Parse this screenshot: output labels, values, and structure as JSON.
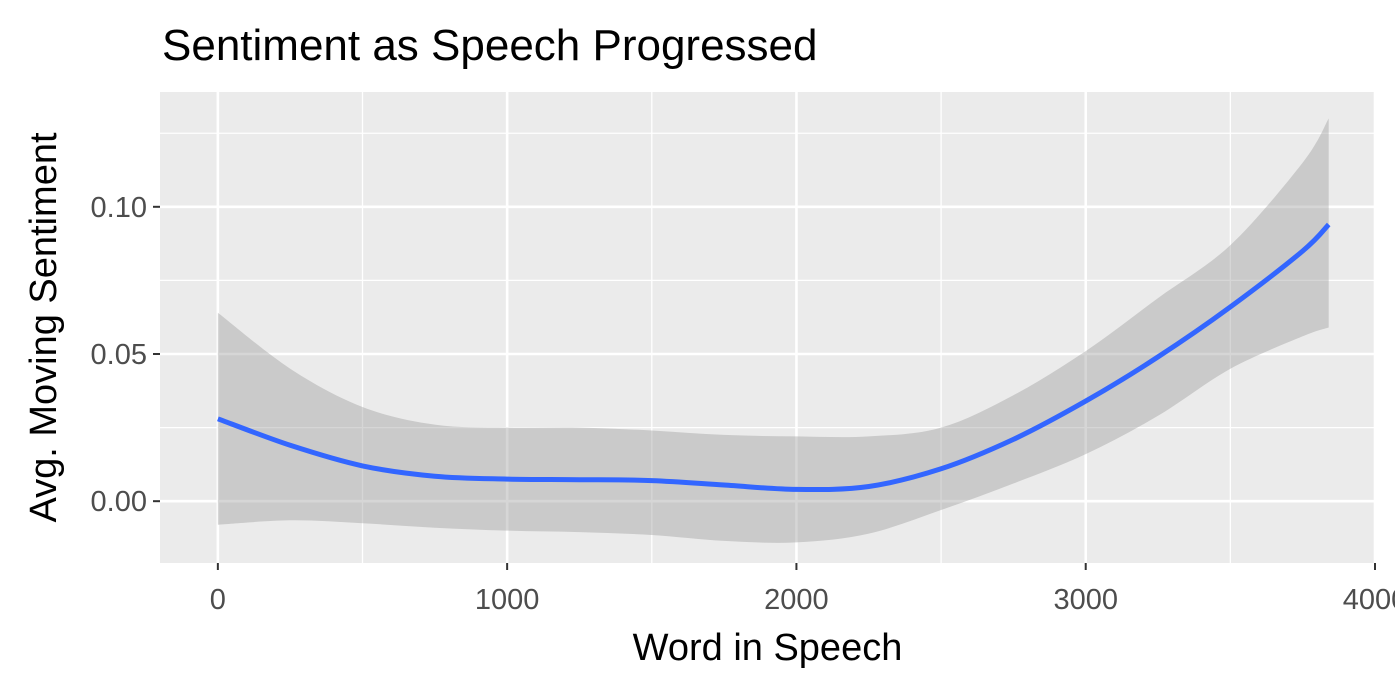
{
  "chart_data": {
    "type": "line",
    "title": "Sentiment as Speech Progressed",
    "xlabel": "Word in Speech",
    "ylabel": "Avg. Moving Sentiment",
    "xlim": [
      -200,
      4000
    ],
    "ylim": [
      -0.021,
      0.139
    ],
    "x_ticks": [
      0,
      1000,
      2000,
      3000,
      4000
    ],
    "x_tick_labels": [
      "0",
      "1000",
      "2000",
      "3000",
      "4000"
    ],
    "y_ticks": [
      0.0,
      0.05,
      0.1
    ],
    "y_tick_labels": [
      "0.00",
      "0.05",
      "0.10"
    ],
    "grid": true,
    "legend": "none",
    "colors": {
      "panel": "#ebebeb",
      "grid": "#ffffff",
      "line": "#3366ff",
      "ribbon": "#c8c8c8"
    },
    "series": [
      {
        "x": [
          0,
          250,
          500,
          750,
          1000,
          1250,
          1500,
          1750,
          2000,
          2250,
          2500,
          2750,
          3000,
          3250,
          3500,
          3750,
          3840
        ],
        "y": [
          0.028,
          0.019,
          0.012,
          0.0085,
          0.0075,
          0.0073,
          0.007,
          0.0055,
          0.004,
          0.005,
          0.011,
          0.021,
          0.034,
          0.049,
          0.066,
          0.085,
          0.094
        ],
        "lower": [
          -0.008,
          -0.0065,
          -0.0075,
          -0.009,
          -0.01,
          -0.0105,
          -0.0115,
          -0.0135,
          -0.014,
          -0.011,
          -0.003,
          0.006,
          0.016,
          0.029,
          0.045,
          0.056,
          0.059
        ],
        "upper": [
          0.064,
          0.045,
          0.032,
          0.026,
          0.025,
          0.025,
          0.024,
          0.0225,
          0.022,
          0.022,
          0.025,
          0.036,
          0.051,
          0.069,
          0.087,
          0.115,
          0.13
        ]
      }
    ]
  }
}
